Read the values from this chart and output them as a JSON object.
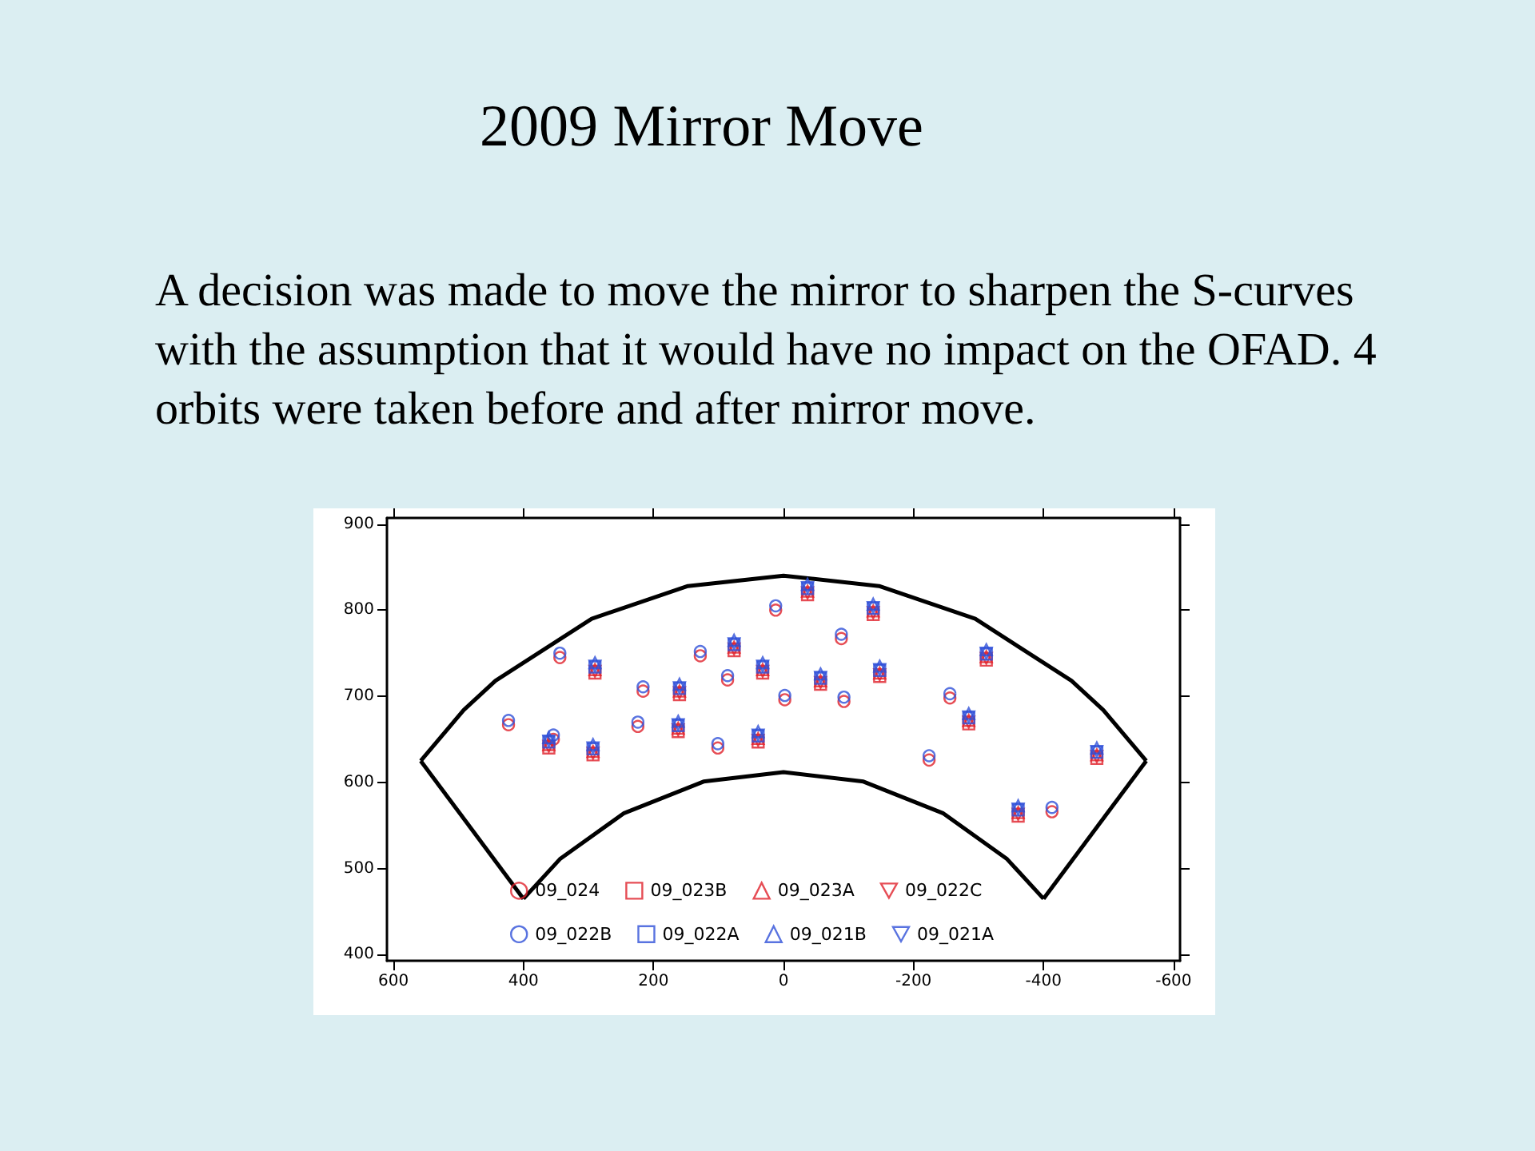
{
  "chart_data": {
    "type": "scatter",
    "title": "2009 Mirror Move",
    "subtitle": "A decision was made to move the mirror to sharpen the S-curves with the assumption that it would have no impact on the OFAD.   4 orbits were taken before and after mirror move.",
    "xlim": [
      610,
      -610
    ],
    "xticks": [
      600,
      400,
      200,
      0,
      -200,
      -400,
      -600
    ],
    "ylim": [
      393,
      907
    ],
    "yticks": [
      400,
      500,
      600,
      700,
      800,
      900
    ],
    "grid": false,
    "legend": "bottom",
    "series": [
      {
        "name": "09_024",
        "color": "#e0202a",
        "marker": "circle",
        "x": [
          423,
          354,
          344,
          216,
          224,
          128,
          86,
          101,
          12,
          -89,
          -2,
          -93,
          -256,
          -224,
          -413
        ],
        "values": [
          667,
          650,
          745,
          706,
          665,
          747,
          719,
          640,
          800,
          767,
          696,
          694,
          698,
          626,
          566
        ]
      },
      {
        "name": "09_023B",
        "color": "#e0202a",
        "marker": "square",
        "x": [
          361,
          290,
          293,
          160,
          162,
          76,
          32,
          39,
          -37,
          -138,
          -57,
          -148,
          -312,
          -285,
          -482,
          -361
        ],
        "values": [
          640,
          727,
          632,
          702,
          659,
          753,
          727,
          647,
          818,
          795,
          714,
          723,
          742,
          668,
          628,
          561
        ]
      },
      {
        "name": "09_023A",
        "color": "#e0202a",
        "marker": "triangle",
        "x": [
          361,
          290,
          293,
          160,
          162,
          76,
          32,
          39,
          -37,
          -138,
          -57,
          -148,
          -312,
          -285,
          -482,
          -361
        ],
        "values": [
          644,
          731,
          636,
          706,
          663,
          757,
          731,
          651,
          822,
          799,
          718,
          727,
          746,
          672,
          632,
          565
        ]
      },
      {
        "name": "09_022C",
        "color": "#e0202a",
        "marker": "triangle-down",
        "x": [
          361,
          290,
          293,
          160,
          162,
          76,
          32,
          39,
          -37,
          -138,
          -57,
          -148,
          -312,
          -285,
          -482,
          -361
        ],
        "values": [
          642,
          729,
          634,
          704,
          661,
          755,
          729,
          649,
          820,
          797,
          716,
          725,
          744,
          670,
          630,
          563
        ]
      },
      {
        "name": "09_022B",
        "color": "#3050d8",
        "marker": "circle",
        "x": [
          423,
          354,
          344,
          216,
          224,
          128,
          86,
          101,
          12,
          -89,
          -2,
          -93,
          -256,
          -224,
          -413
        ],
        "values": [
          672,
          655,
          750,
          711,
          670,
          752,
          724,
          645,
          805,
          772,
          701,
          699,
          703,
          631,
          571
        ]
      },
      {
        "name": "09_022A",
        "color": "#3050d8",
        "marker": "square",
        "x": [
          361,
          290,
          293,
          160,
          162,
          76,
          32,
          39,
          -37,
          -138,
          -57,
          -148,
          -312,
          -285,
          -482,
          -361
        ],
        "values": [
          647,
          734,
          639,
          709,
          666,
          760,
          734,
          654,
          825,
          802,
          721,
          730,
          749,
          675,
          635,
          568
        ]
      },
      {
        "name": "09_021B",
        "color": "#3050d8",
        "marker": "triangle",
        "x": [
          361,
          290,
          293,
          160,
          162,
          76,
          32,
          39,
          -37,
          -138,
          -57,
          -148,
          -312,
          -285,
          -482,
          -361
        ],
        "values": [
          652,
          739,
          644,
          714,
          671,
          765,
          739,
          659,
          830,
          807,
          726,
          735,
          754,
          680,
          640,
          573
        ]
      },
      {
        "name": "09_021A",
        "color": "#3050d8",
        "marker": "triangle-down",
        "x": [
          361,
          290,
          293,
          160,
          162,
          76,
          32,
          39,
          -37,
          -138,
          -57,
          -148,
          -312,
          -285,
          -482,
          -361
        ],
        "values": [
          648,
          735,
          640,
          710,
          667,
          761,
          735,
          655,
          826,
          803,
          722,
          731,
          750,
          676,
          636,
          569
        ]
      },
      {
        "type": "line",
        "color": "#000000",
        "marker": "none",
        "line_style": "solid",
        "x": [
          558,
          492,
          443,
          295,
          147,
          0,
          -147,
          -295,
          -443,
          -492,
          -558
        ],
        "values": [
          625,
          684,
          718,
          790,
          828,
          840,
          828,
          790,
          718,
          684,
          625
        ]
      },
      {
        "type": "line",
        "color": "#000000",
        "marker": "none",
        "line_style": "solid",
        "x": [
          400,
          344,
          246,
          123,
          0,
          -123,
          -246,
          -344,
          -400
        ],
        "values": [
          465,
          511,
          564,
          601,
          612,
          601,
          564,
          511,
          465
        ]
      },
      {
        "type": "line",
        "color": "#000000",
        "marker": "none",
        "line_style": "solid",
        "x": [
          558,
          400
        ],
        "values": [
          625,
          465
        ]
      },
      {
        "type": "line",
        "color": "#000000",
        "marker": "none",
        "line_style": "solid",
        "x": [
          -400,
          -558
        ],
        "values": [
          465,
          625
        ]
      }
    ]
  }
}
